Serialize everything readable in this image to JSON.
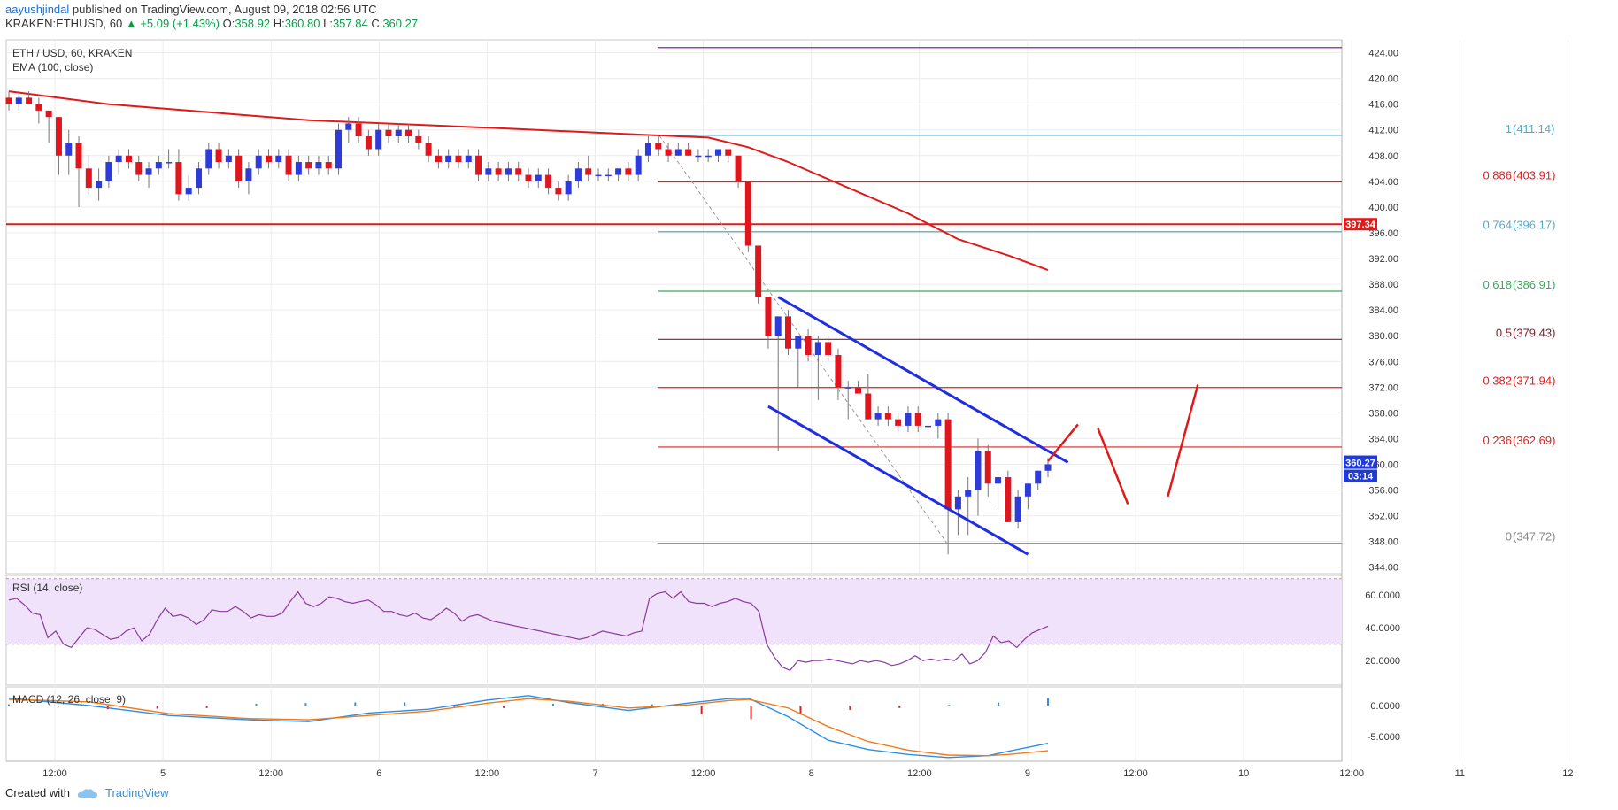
{
  "header": {
    "author": "aayushjindal",
    "published": "published on TradingView.com, August 09, 2018 02:56 UTC",
    "symbol": "KRAKEN:ETHUSD, 60",
    "change": "+5.09 (+1.43%)",
    "open_label": "O:",
    "open": "358.92",
    "high_label": "H:",
    "high": "360.80",
    "low_label": "L:",
    "low": "357.84",
    "close_label": "C:",
    "close": "360.27"
  },
  "footer": {
    "created_with": "Created with",
    "brand": "TradingView"
  },
  "colors": {
    "up_candle": "#2d3bd8",
    "down_candle": "#e0161f",
    "ema": "#e01a1a",
    "rsi_band": "#f0e2fa",
    "rsi_line": "#8a3aa0",
    "macd_line": "#2a8ee8",
    "signal_line": "#f07a1a",
    "channel": "#1f2ee0",
    "fib_red": "#e02020",
    "fib_blue": "#55aacc",
    "fib_green": "#3aaa5a",
    "fib_maroon": "#7a2030",
    "fib_gray": "#888888",
    "resistance": "#e01a1a",
    "arrow": "#e01a1a",
    "price_tag": "#1f3ad8"
  },
  "chart_data": [
    {
      "type": "candlestick",
      "title": "ETH / USD, 60, KRAKEN",
      "indicator_label": "EMA (100, close)",
      "ylim": [
        343,
        426
      ],
      "y_ticks": [
        "424.00",
        "420.00",
        "416.00",
        "412.00",
        "408.00",
        "404.00",
        "400.00",
        "396.00",
        "392.00",
        "388.00",
        "384.00",
        "380.00",
        "376.00",
        "372.00",
        "368.00",
        "364.00",
        "360.00",
        "356.00",
        "352.00",
        "348.00",
        "344.00"
      ],
      "x_ticks": [
        "12:00",
        "5",
        "12:00",
        "6",
        "12:00",
        "7",
        "12:00",
        "8",
        "12:00",
        "9",
        "12:00",
        "10",
        "12:00",
        "11",
        "12"
      ],
      "candles_ohlc": [
        [
          417,
          418,
          415,
          416
        ],
        [
          416,
          418,
          415,
          417
        ],
        [
          417,
          418,
          416,
          416
        ],
        [
          416,
          417,
          413,
          415
        ],
        [
          415,
          415,
          410,
          414
        ],
        [
          414,
          414,
          405,
          408
        ],
        [
          408,
          412,
          405,
          410
        ],
        [
          410,
          411,
          400,
          406
        ],
        [
          406,
          408,
          402,
          403
        ],
        [
          403,
          406,
          401,
          404
        ],
        [
          404,
          408,
          403,
          407
        ],
        [
          407,
          409,
          405,
          408
        ],
        [
          408,
          409,
          406,
          407
        ],
        [
          407,
          408,
          404,
          405
        ],
        [
          405,
          407,
          403,
          406
        ],
        [
          406,
          408,
          405,
          407
        ],
        [
          407,
          409,
          406,
          407
        ],
        [
          407,
          409,
          401,
          402
        ],
        [
          402,
          405,
          401,
          403
        ],
        [
          403,
          407,
          402,
          406
        ],
        [
          406,
          410,
          405,
          409
        ],
        [
          409,
          410,
          406,
          407
        ],
        [
          407,
          409,
          406,
          408
        ],
        [
          408,
          409,
          403,
          404
        ],
        [
          404,
          407,
          402,
          406
        ],
        [
          406,
          409,
          405,
          408
        ],
        [
          408,
          409,
          406,
          407
        ],
        [
          407,
          409,
          406,
          408
        ],
        [
          408,
          409,
          404,
          405
        ],
        [
          405,
          408,
          404,
          407
        ],
        [
          407,
          408,
          405,
          406
        ],
        [
          406,
          408,
          405,
          407
        ],
        [
          407,
          408,
          405,
          406
        ],
        [
          406,
          413,
          405,
          412
        ],
        [
          412,
          414,
          410,
          413
        ],
        [
          413,
          414,
          410,
          411
        ],
        [
          411,
          412,
          408,
          409
        ],
        [
          409,
          413,
          408,
          412
        ],
        [
          412,
          413,
          410,
          411
        ],
        [
          411,
          413,
          410,
          412
        ],
        [
          412,
          413,
          410,
          411
        ],
        [
          411,
          412,
          409,
          410
        ],
        [
          410,
          411,
          407,
          408
        ],
        [
          408,
          409,
          406,
          407
        ],
        [
          407,
          409,
          406,
          408
        ],
        [
          408,
          409,
          406,
          407
        ],
        [
          407,
          409,
          406,
          408
        ],
        [
          408,
          409,
          404,
          405
        ],
        [
          405,
          407,
          404,
          406
        ],
        [
          406,
          407,
          404,
          405
        ],
        [
          405,
          407,
          404,
          406
        ],
        [
          406,
          407,
          404,
          405
        ],
        [
          405,
          406,
          403,
          404
        ],
        [
          404,
          406,
          403,
          405
        ],
        [
          405,
          406,
          402,
          403
        ],
        [
          403,
          404,
          401,
          402
        ],
        [
          402,
          405,
          401,
          404
        ],
        [
          404,
          407,
          403,
          406
        ],
        [
          406,
          408,
          404,
          405
        ],
        [
          405,
          406,
          404,
          405
        ],
        [
          405,
          406,
          404,
          405
        ],
        [
          405,
          406,
          404,
          406
        ],
        [
          406,
          407,
          404,
          405
        ],
        [
          405,
          409,
          404,
          408
        ],
        [
          408,
          411,
          407,
          410
        ],
        [
          410,
          411,
          408,
          409
        ],
        [
          409,
          410,
          407,
          408
        ],
        [
          408,
          410,
          408,
          409
        ],
        [
          409,
          410,
          408,
          408
        ],
        [
          408,
          409,
          407,
          408
        ],
        [
          408,
          409,
          407,
          408
        ],
        [
          408,
          409,
          407,
          409
        ],
        [
          409,
          409,
          407,
          408
        ],
        [
          408,
          408,
          403,
          404
        ],
        [
          404,
          404,
          393,
          394
        ],
        [
          394,
          394,
          385,
          386
        ],
        [
          386,
          386,
          378,
          380
        ],
        [
          380,
          382,
          362,
          383
        ],
        [
          383,
          384,
          377,
          378
        ],
        [
          378,
          380,
          372,
          380
        ],
        [
          380,
          381,
          376,
          377
        ],
        [
          377,
          380,
          370,
          379
        ],
        [
          379,
          380,
          376,
          377
        ],
        [
          377,
          378,
          370,
          372
        ],
        [
          372,
          373,
          367,
          372
        ],
        [
          372,
          373,
          371,
          371
        ],
        [
          371,
          374,
          367,
          367
        ],
        [
          367,
          369,
          366,
          368
        ],
        [
          368,
          369,
          366,
          367
        ],
        [
          367,
          368,
          365,
          366
        ],
        [
          366,
          369,
          365,
          368
        ],
        [
          368,
          369,
          365,
          366
        ],
        [
          366,
          367,
          363,
          366
        ],
        [
          366,
          368,
          364,
          367
        ],
        [
          367,
          368,
          346,
          353
        ],
        [
          353,
          356,
          349,
          355
        ],
        [
          355,
          358,
          349,
          356
        ],
        [
          356,
          364,
          352,
          362
        ],
        [
          362,
          363,
          355,
          357
        ],
        [
          357,
          359,
          353,
          358
        ],
        [
          358,
          359,
          351,
          351
        ],
        [
          351,
          356,
          350,
          355
        ],
        [
          355,
          357,
          353,
          357
        ],
        [
          357,
          359,
          356,
          359
        ],
        [
          359,
          361,
          358,
          360
        ]
      ],
      "ema": [
        [
          0,
          418
        ],
        [
          10,
          416
        ],
        [
          30,
          413.5
        ],
        [
          50,
          412.2
        ],
        [
          64,
          411.2
        ],
        [
          70,
          410.8
        ],
        [
          74,
          409.3
        ],
        [
          78,
          407
        ],
        [
          84,
          403
        ],
        [
          90,
          399
        ],
        [
          95,
          395
        ],
        [
          100,
          392.5
        ],
        [
          104,
          390.2
        ]
      ],
      "resistance": {
        "price": 397.34,
        "label": "397.34"
      },
      "fib_levels": [
        {
          "ratio": "1",
          "price": 411.14,
          "label": "(411.14)",
          "color": "fib_blue"
        },
        {
          "ratio": "0.886",
          "price": 403.91,
          "label": "(403.91)",
          "color": "fib_red"
        },
        {
          "ratio": "0.764",
          "price": 396.17,
          "label": "(396.17)",
          "color": "fib_blue"
        },
        {
          "ratio": "0.618",
          "price": 386.91,
          "label": "(386.91)",
          "color": "fib_green"
        },
        {
          "ratio": "0.5",
          "price": 379.43,
          "label": "(379.43)",
          "color": "fib_maroon"
        },
        {
          "ratio": "0.382",
          "price": 371.94,
          "label": "(371.94)",
          "color": "fib_red"
        },
        {
          "ratio": "0.236",
          "price": 362.69,
          "label": "(362.69)",
          "color": "fib_red"
        },
        {
          "ratio": "0",
          "price": 347.72,
          "label": "(347.72)",
          "color": "fib_gray"
        }
      ],
      "last_price": "360.27",
      "countdown": "03:14",
      "channel": {
        "upper": [
          [
            77,
            386
          ],
          [
            106,
            360.3
          ]
        ],
        "lower": [
          [
            76,
            369
          ],
          [
            102,
            346
          ]
        ]
      },
      "projection": [
        [
          [
            104,
            360.5
          ],
          [
            107,
            366.2
          ]
        ],
        [
          [
            109,
            365.6
          ],
          [
            112,
            353.8
          ]
        ],
        [
          [
            116,
            355
          ],
          [
            119,
            372.4
          ]
        ]
      ]
    },
    {
      "type": "line",
      "title": "RSI (14, close)",
      "ylim": [
        5,
        72
      ],
      "y_ticks": [
        "60.0000",
        "40.0000",
        "20.0000"
      ],
      "band": [
        30,
        70
      ],
      "values": [
        57,
        58,
        54,
        49,
        48,
        34,
        38,
        30,
        28,
        34,
        40,
        39,
        36,
        33,
        34,
        38,
        40,
        32,
        36,
        45,
        52,
        47,
        48,
        46,
        42,
        45,
        51,
        50,
        50,
        53,
        50,
        46,
        48,
        47,
        47,
        49,
        56,
        62,
        55,
        53,
        55,
        59,
        58,
        56,
        55,
        56,
        57,
        54,
        50,
        50,
        48,
        47,
        49,
        46,
        45,
        48,
        52,
        49,
        44,
        47,
        48,
        46,
        44,
        43,
        42,
        41,
        40,
        39,
        38,
        37,
        36,
        35,
        34,
        33,
        34,
        36,
        38,
        37,
        36,
        35,
        37,
        38,
        58,
        61,
        62,
        58,
        62,
        56,
        55,
        55,
        53,
        55,
        56,
        58,
        56,
        55,
        50,
        30,
        22,
        16,
        14,
        20,
        19,
        20,
        20,
        21,
        20,
        19,
        18,
        20,
        19,
        20,
        19,
        17,
        18,
        20,
        23,
        20,
        21,
        20,
        21,
        20,
        24,
        18,
        20,
        25,
        35,
        31,
        32,
        28,
        33,
        37,
        39,
        41
      ]
    },
    {
      "type": "line",
      "title": "MACD (12, 26, close, 9)",
      "ylim": [
        -9,
        3
      ],
      "y_ticks": [
        "0.0000",
        "-5.0000"
      ],
      "macd": [
        [
          0,
          1.2
        ],
        [
          8,
          0
        ],
        [
          16,
          -1.6
        ],
        [
          24,
          -2.3
        ],
        [
          30,
          -2.6
        ],
        [
          36,
          -1.2
        ],
        [
          42,
          -0.6
        ],
        [
          48,
          0.9
        ],
        [
          52,
          1.6
        ],
        [
          56,
          0.5
        ],
        [
          62,
          -0.8
        ],
        [
          68,
          0.4
        ],
        [
          72,
          1.1
        ],
        [
          74,
          1.2
        ],
        [
          78,
          -1.8
        ],
        [
          82,
          -5.6
        ],
        [
          86,
          -7.1
        ],
        [
          90,
          -7.9
        ],
        [
          94,
          -8.4
        ],
        [
          98,
          -8.1
        ],
        [
          100,
          -7.4
        ],
        [
          104,
          -6.1
        ]
      ],
      "signal": [
        [
          0,
          1.0
        ],
        [
          8,
          0.6
        ],
        [
          16,
          -1.3
        ],
        [
          24,
          -2.1
        ],
        [
          30,
          -2.3
        ],
        [
          36,
          -1.6
        ],
        [
          42,
          -0.9
        ],
        [
          48,
          0.4
        ],
        [
          52,
          1.1
        ],
        [
          56,
          0.7
        ],
        [
          62,
          -0.4
        ],
        [
          68,
          0.1
        ],
        [
          72,
          0.8
        ],
        [
          74,
          1.0
        ],
        [
          78,
          -0.4
        ],
        [
          82,
          -3.4
        ],
        [
          86,
          -5.8
        ],
        [
          90,
          -7.2
        ],
        [
          94,
          -8.0
        ],
        [
          98,
          -8.1
        ],
        [
          100,
          -7.9
        ],
        [
          104,
          -7.3
        ]
      ],
      "histogram": [
        0.2,
        -0.2,
        -0.6,
        -0.5,
        -0.4,
        0.3,
        0.4,
        0.5,
        0.5,
        -0.2,
        -0.4,
        0.3,
        0.3,
        0.2,
        -1.4,
        -2.2,
        -1.3,
        -0.7,
        -0.4,
        0.1,
        0.5,
        1.2
      ]
    }
  ]
}
